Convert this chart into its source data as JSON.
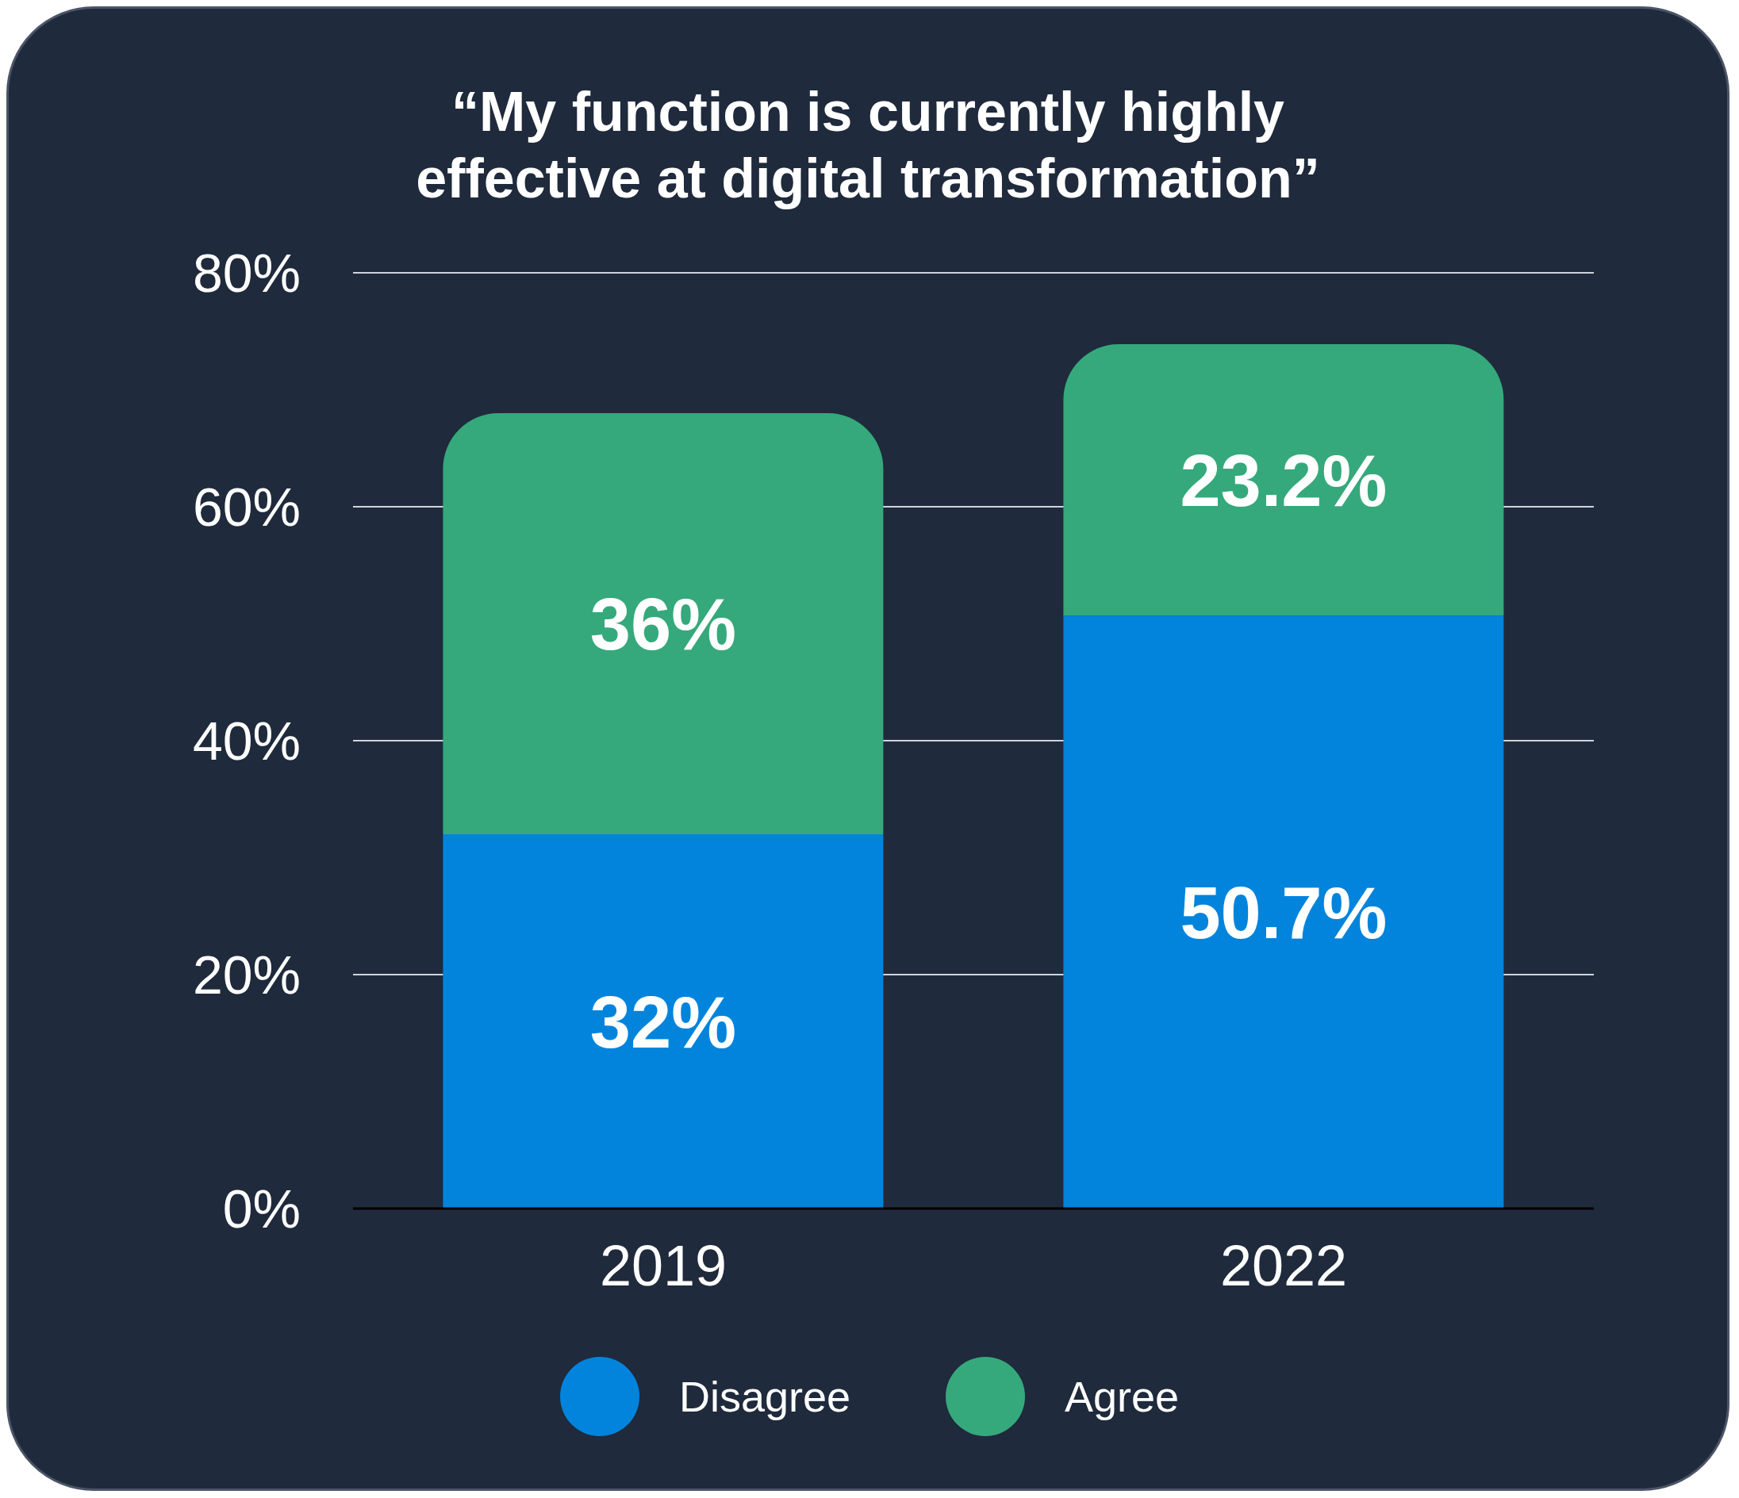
{
  "chart_data": {
    "type": "bar",
    "title": "“My function is currently highly effective at digital transformation”",
    "categories": [
      "2019",
      "2022"
    ],
    "stacked": true,
    "series": [
      {
        "name": "Disagree",
        "color": "#0284dc",
        "values": [
          32,
          50.7
        ],
        "value_labels": [
          "32%",
          "50.7%"
        ]
      },
      {
        "name": "Agree",
        "color": "#35a97c",
        "values": [
          36,
          23.2
        ],
        "value_labels": [
          "36%",
          "23.2%"
        ]
      }
    ],
    "ylim": [
      0,
      80
    ],
    "yticks": [
      {
        "value": 0,
        "label": "0%"
      },
      {
        "value": 20,
        "label": "20%"
      },
      {
        "value": 40,
        "label": "40%"
      },
      {
        "value": 60,
        "label": "60%"
      },
      {
        "value": 80,
        "label": "80%"
      }
    ],
    "grid": "y",
    "legend": "bottom"
  }
}
